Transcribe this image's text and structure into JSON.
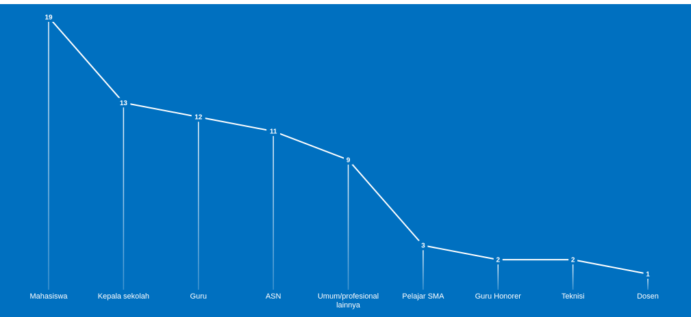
{
  "page": {
    "title": "",
    "background": "#0070c0",
    "line_color": "#ffffff"
  },
  "chart_data": {
    "type": "line",
    "title": "",
    "xlabel": "",
    "ylabel": "",
    "ylim": [
      0,
      19
    ],
    "grid": false,
    "legend": "none",
    "categories": [
      "Mahasiswa",
      "Kepala sekolah",
      "Guru",
      "ASN",
      "Umum/profesional lainnya",
      "Pelajar SMA",
      "Guru Honorer",
      "Teknisi",
      "Dosen"
    ],
    "category_lines": [
      [
        "Mahasiswa"
      ],
      [
        "Kepala sekolah"
      ],
      [
        "Guru"
      ],
      [
        "ASN"
      ],
      [
        "Umum/profesional",
        "lainnya"
      ],
      [
        "Pelajar SMA"
      ],
      [
        "Guru Honorer"
      ],
      [
        "Teknisi"
      ],
      [
        "Dosen"
      ]
    ],
    "values": [
      19,
      13,
      12,
      11,
      9,
      3,
      2,
      2,
      1
    ]
  }
}
